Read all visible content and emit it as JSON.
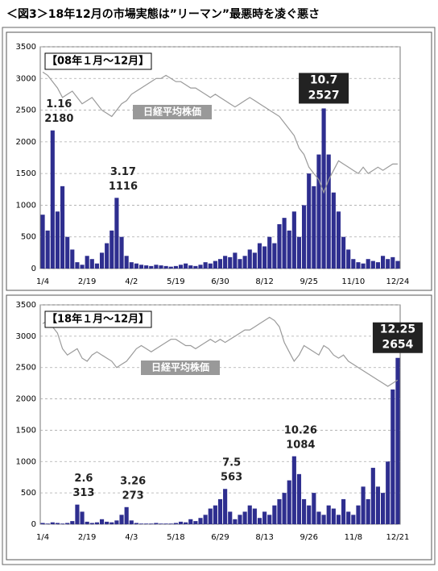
{
  "header": {
    "title": "＜図3＞18年12月の市場実態は”リーマン”最悪時を凌ぐ悪さ"
  },
  "chart_data": [
    {
      "type": "bar",
      "title": "【08年１月～12月】",
      "categories": [
        "1/4",
        null,
        null,
        null,
        null,
        null,
        null,
        null,
        null,
        "2/19",
        null,
        null,
        null,
        null,
        null,
        null,
        null,
        null,
        "4/2",
        null,
        null,
        null,
        null,
        null,
        null,
        null,
        null,
        "5/19",
        null,
        null,
        null,
        null,
        null,
        null,
        null,
        null,
        "6/30",
        null,
        null,
        null,
        null,
        null,
        null,
        null,
        null,
        "8/12",
        null,
        null,
        null,
        null,
        null,
        null,
        null,
        null,
        "9/25",
        null,
        null,
        null,
        null,
        null,
        null,
        null,
        null,
        "11/10",
        null,
        null,
        null,
        null,
        null,
        null,
        null,
        null,
        "12/24"
      ],
      "ylim": [
        0,
        3500
      ],
      "yticks": [
        0,
        500,
        1000,
        1500,
        2000,
        2500,
        3000,
        3500
      ],
      "grid": true,
      "series": [
        {
          "name": null,
          "type": "bar",
          "color": "#2e2e8f",
          "values": [
            850,
            600,
            2180,
            900,
            1300,
            500,
            300,
            100,
            60,
            200,
            150,
            80,
            250,
            400,
            600,
            1116,
            500,
            200,
            100,
            80,
            60,
            50,
            40,
            60,
            50,
            40,
            30,
            40,
            60,
            80,
            50,
            40,
            60,
            100,
            80,
            120,
            150,
            200,
            180,
            250,
            150,
            200,
            300,
            250,
            400,
            350,
            500,
            400,
            700,
            800,
            600,
            900,
            500,
            1000,
            1500,
            1300,
            1800,
            2527,
            1800,
            1200,
            900,
            500,
            300,
            150,
            100,
            80,
            150,
            120,
            100,
            200,
            150,
            180,
            120
          ]
        },
        {
          "name": "日経平均株価",
          "type": "line",
          "color": "#9a9a9a",
          "values": [
            3100,
            3050,
            2950,
            2850,
            2700,
            2750,
            2800,
            2700,
            2600,
            2650,
            2700,
            2600,
            2500,
            2450,
            2400,
            2500,
            2600,
            2650,
            2750,
            2800,
            2850,
            2900,
            2950,
            3000,
            3000,
            3050,
            3000,
            2950,
            2950,
            2900,
            2850,
            2850,
            2800,
            2750,
            2700,
            2750,
            2700,
            2650,
            2600,
            2550,
            2600,
            2650,
            2700,
            2650,
            2600,
            2550,
            2500,
            2450,
            2400,
            2300,
            2200,
            2100,
            1900,
            1800,
            1600,
            1500,
            1400,
            1200,
            1400,
            1550,
            1700,
            1650,
            1600,
            1550,
            1500,
            1600,
            1500,
            1550,
            1600,
            1550,
            1600,
            1650,
            1650
          ]
        }
      ],
      "annotations": [
        {
          "index": 2,
          "label": "1.16",
          "value": 2180,
          "boxed": false
        },
        {
          "index": 15,
          "label": "3.17",
          "value": 1116,
          "boxed": false
        },
        {
          "index": 57,
          "label": "10.7",
          "value": 2527,
          "boxed": true
        }
      ]
    },
    {
      "type": "bar",
      "title": "【18年１月～12月】",
      "categories": [
        "1/4",
        null,
        null,
        null,
        null,
        null,
        null,
        null,
        null,
        "2/19",
        null,
        null,
        null,
        null,
        null,
        null,
        null,
        null,
        "4/3",
        null,
        null,
        null,
        null,
        null,
        null,
        null,
        null,
        "5/18",
        null,
        null,
        null,
        null,
        null,
        null,
        null,
        null,
        "6/29",
        null,
        null,
        null,
        null,
        null,
        null,
        null,
        null,
        "8/13",
        null,
        null,
        null,
        null,
        null,
        null,
        null,
        null,
        "9/26",
        null,
        null,
        null,
        null,
        null,
        null,
        null,
        null,
        "11/8",
        null,
        null,
        null,
        null,
        null,
        null,
        null,
        null,
        "12/21"
      ],
      "ylim": [
        0,
        3500
      ],
      "yticks": [
        0,
        500,
        1000,
        1500,
        2000,
        2500,
        3000,
        3500
      ],
      "grid": true,
      "series": [
        {
          "name": null,
          "type": "bar",
          "color": "#2e2e8f",
          "values": [
            20,
            10,
            30,
            20,
            10,
            20,
            50,
            313,
            200,
            40,
            20,
            30,
            80,
            40,
            30,
            60,
            150,
            273,
            60,
            20,
            10,
            10,
            10,
            20,
            10,
            10,
            10,
            20,
            40,
            30,
            80,
            50,
            100,
            150,
            250,
            300,
            400,
            563,
            200,
            80,
            150,
            200,
            300,
            250,
            100,
            200,
            150,
            300,
            400,
            500,
            700,
            1084,
            800,
            400,
            300,
            500,
            200,
            150,
            300,
            250,
            150,
            400,
            200,
            150,
            300,
            600,
            400,
            900,
            600,
            500,
            1000,
            2150,
            2654
          ]
        },
        {
          "name": "日経平均株価",
          "type": "line",
          "color": "#9a9a9a",
          "values": [
            3200,
            3250,
            3150,
            3050,
            2800,
            2700,
            2750,
            2800,
            2650,
            2600,
            2700,
            2750,
            2700,
            2650,
            2600,
            2500,
            2550,
            2600,
            2700,
            2800,
            2850,
            2800,
            2750,
            2800,
            2850,
            2900,
            2950,
            2950,
            2900,
            2850,
            2850,
            2800,
            2850,
            2900,
            2950,
            2900,
            2950,
            2900,
            2950,
            3000,
            3050,
            3100,
            3100,
            3150,
            3200,
            3250,
            3300,
            3250,
            3150,
            2900,
            2750,
            2600,
            2700,
            2850,
            2800,
            2750,
            2700,
            2850,
            2800,
            2700,
            2650,
            2700,
            2600,
            2550,
            2500,
            2450,
            2400,
            2350,
            2300,
            2250,
            2200,
            2250,
            2300
          ]
        }
      ],
      "annotations": [
        {
          "index": 7,
          "label": "2.6",
          "value": 313,
          "boxed": false
        },
        {
          "index": 17,
          "label": "3.26",
          "value": 273,
          "boxed": false
        },
        {
          "index": 37,
          "label": "7.5",
          "value": 563,
          "boxed": false
        },
        {
          "index": 51,
          "label": "10.26",
          "value": 1084,
          "boxed": false
        },
        {
          "index": 72,
          "label": "12.25",
          "value": 2654,
          "boxed": true
        }
      ]
    }
  ]
}
